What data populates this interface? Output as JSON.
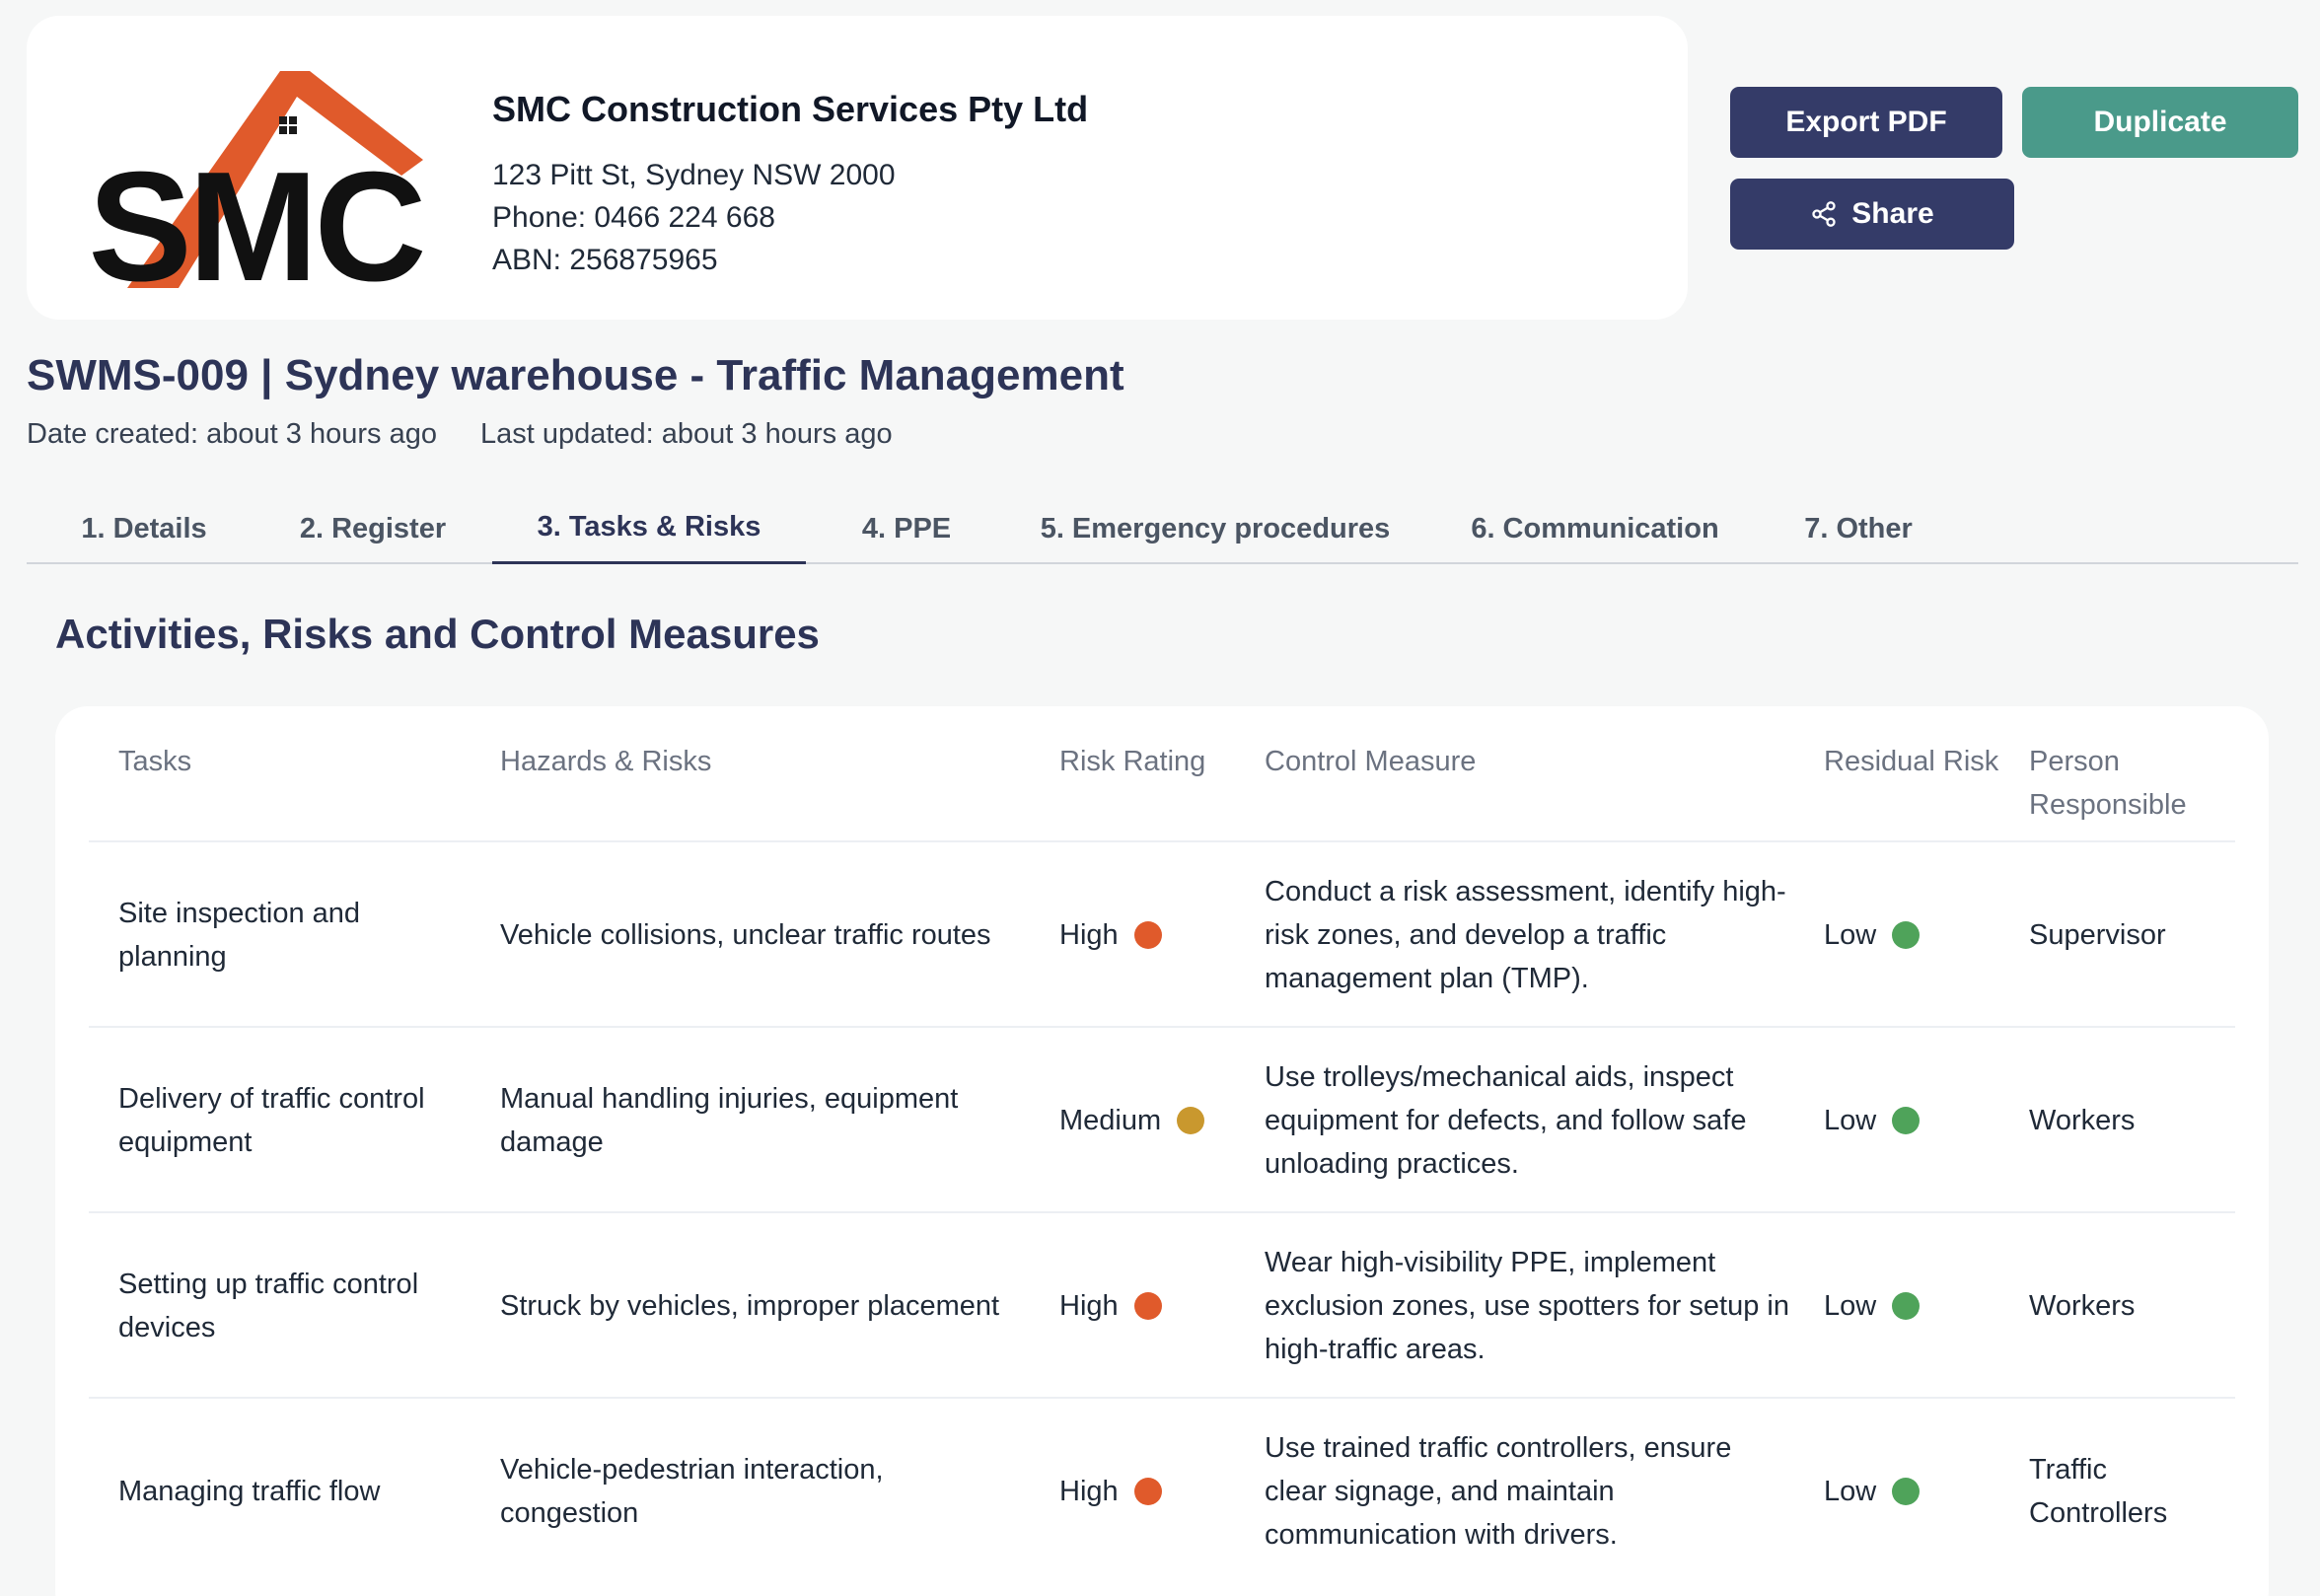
{
  "company": {
    "logo_text": "SMC",
    "name": "SMC Construction Services Pty Ltd",
    "address": "123 Pitt St, Sydney NSW 2000",
    "phone": "Phone: 0466 224 668",
    "abn": "ABN: 256875965"
  },
  "actions": {
    "export_label": "Export PDF",
    "duplicate_label": "Duplicate",
    "share_label": "Share",
    "share_icon": "share-icon"
  },
  "document": {
    "title": "SWMS-009 | Sydney warehouse - Traffic Management",
    "date_created": "Date created: about 3 hours ago",
    "last_updated": "Last updated: about 3 hours ago"
  },
  "tabs": [
    {
      "label": "1. Details"
    },
    {
      "label": "2. Register"
    },
    {
      "label": "3. Tasks & Risks",
      "active": true
    },
    {
      "label": "4. PPE"
    },
    {
      "label": "5. Emergency procedures"
    },
    {
      "label": "6. Communication"
    },
    {
      "label": "7. Other"
    }
  ],
  "section_title": "Activities, Risks and Control Measures",
  "table": {
    "headers": {
      "tasks": "Tasks",
      "hazards": "Hazards & Risks",
      "risk_rating": "Risk Rating",
      "control": "Control Measure",
      "residual": "Residual Risk",
      "person": "Person Responsible"
    },
    "rows": [
      {
        "task": "Site inspection and planning",
        "hazard": "Vehicle collisions, unclear traffic routes",
        "risk": "High",
        "control": "Conduct a risk assessment, identify high-risk zones, and develop a traffic management plan (TMP).",
        "residual": "Low",
        "person": "Supervisor"
      },
      {
        "task": "Delivery of traffic control equipment",
        "hazard": "Manual handling injuries, equipment damage",
        "risk": "Medium",
        "control": "Use trolleys/mechanical aids, inspect equipment for defects, and follow safe unloading practices.",
        "residual": "Low",
        "person": "Workers"
      },
      {
        "task": "Setting up traffic control devices",
        "hazard": "Struck by vehicles, improper placement",
        "risk": "High",
        "control": "Wear high-visibility PPE, implement exclusion zones, use spotters for setup in high-traffic areas.",
        "residual": "Low",
        "person": "Workers"
      },
      {
        "task": "Managing traffic flow",
        "hazard": "Vehicle-pedestrian interaction, congestion",
        "risk": "High",
        "control": "Use trained traffic controllers, ensure clear signage, and maintain communication with drivers.",
        "residual": "Low",
        "person": "Traffic Controllers"
      }
    ]
  },
  "colors": {
    "high": "#e05a2b",
    "medium": "#c9982e",
    "low": "#4fa35a",
    "primary": "#343b68",
    "teal": "#4a9a8a"
  }
}
